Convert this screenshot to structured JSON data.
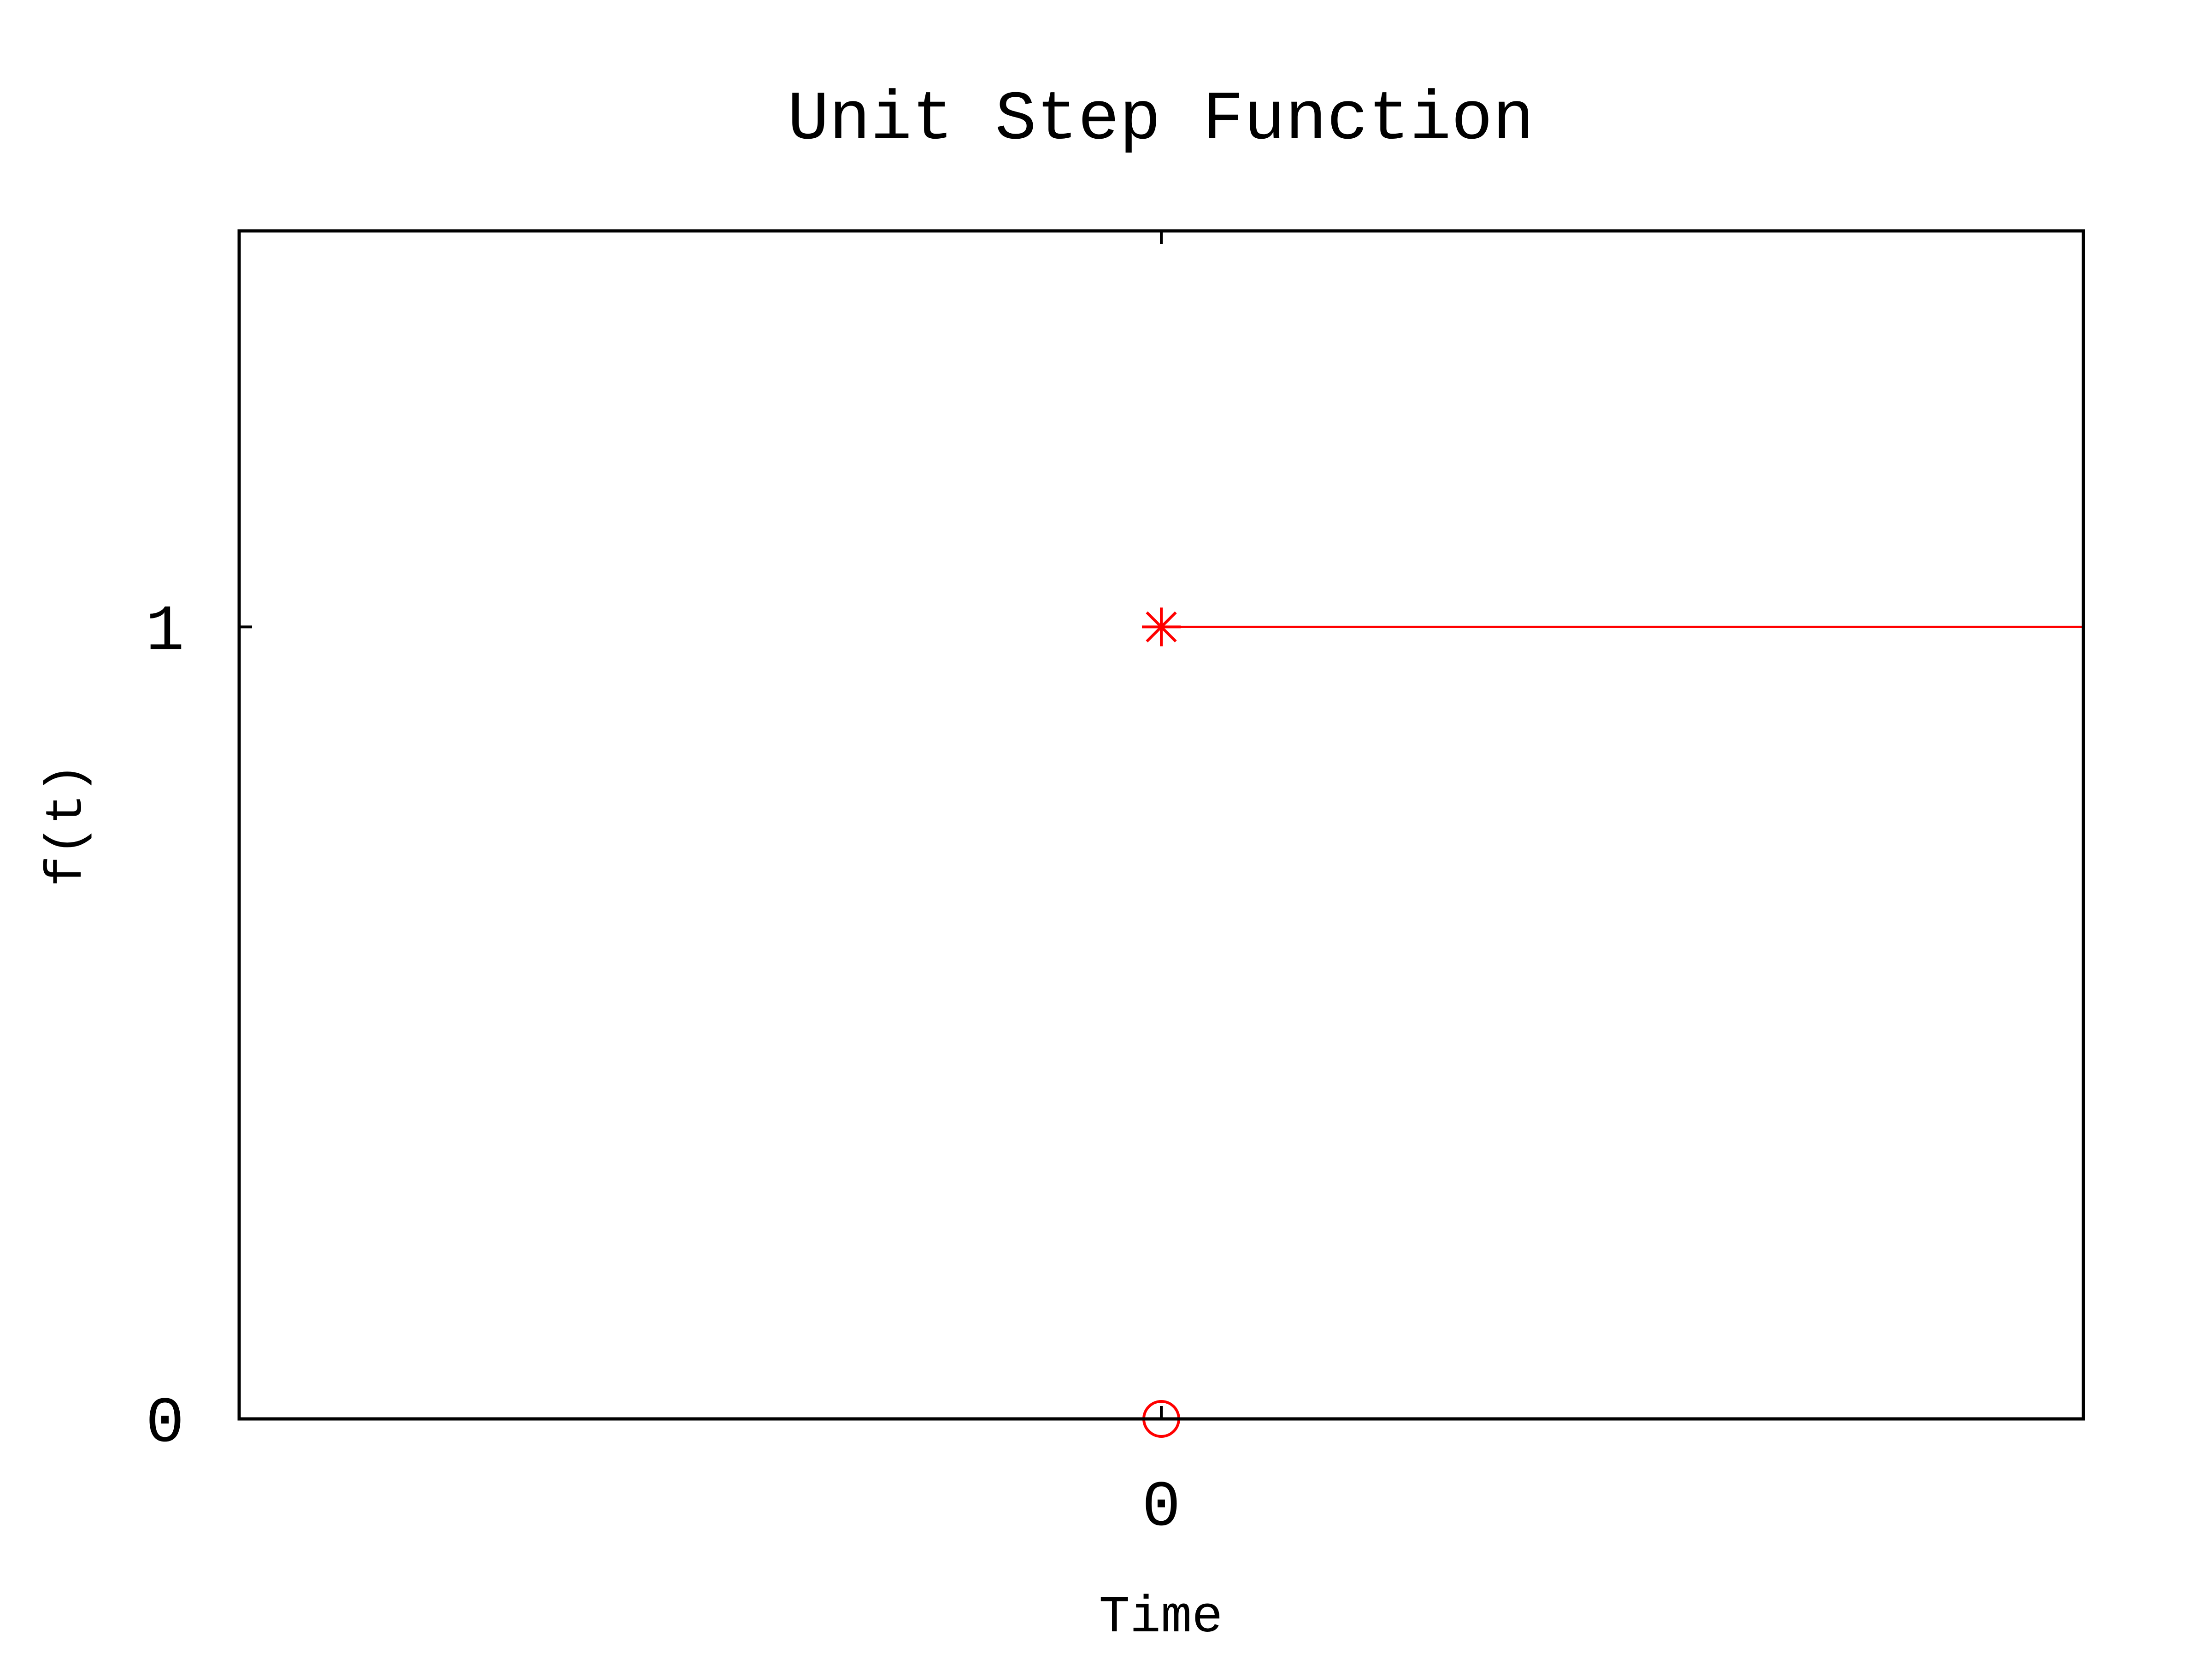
{
  "chart_data": {
    "type": "line",
    "title": "Unit Step Function",
    "xlabel": "Time",
    "ylabel": "f(t)",
    "xlim": [
      -1,
      1
    ],
    "ylim": [
      0,
      1.5
    ],
    "x_ticks": [
      {
        "value": 0,
        "label": "0"
      }
    ],
    "y_ticks": [
      {
        "value": 0,
        "label": "0"
      },
      {
        "value": 1,
        "label": "1"
      }
    ],
    "grid": false,
    "legend": "none",
    "series": [
      {
        "segments": [
          {
            "x": [
              -1,
              0
            ],
            "y": [
              0,
              0
            ],
            "start_marker": "none",
            "end_marker": "open-circle"
          },
          {
            "x": [
              0,
              1
            ],
            "y": [
              1,
              1
            ],
            "start_marker": "asterisk",
            "end_marker": "none"
          }
        ],
        "color": "#ff0000"
      }
    ]
  }
}
